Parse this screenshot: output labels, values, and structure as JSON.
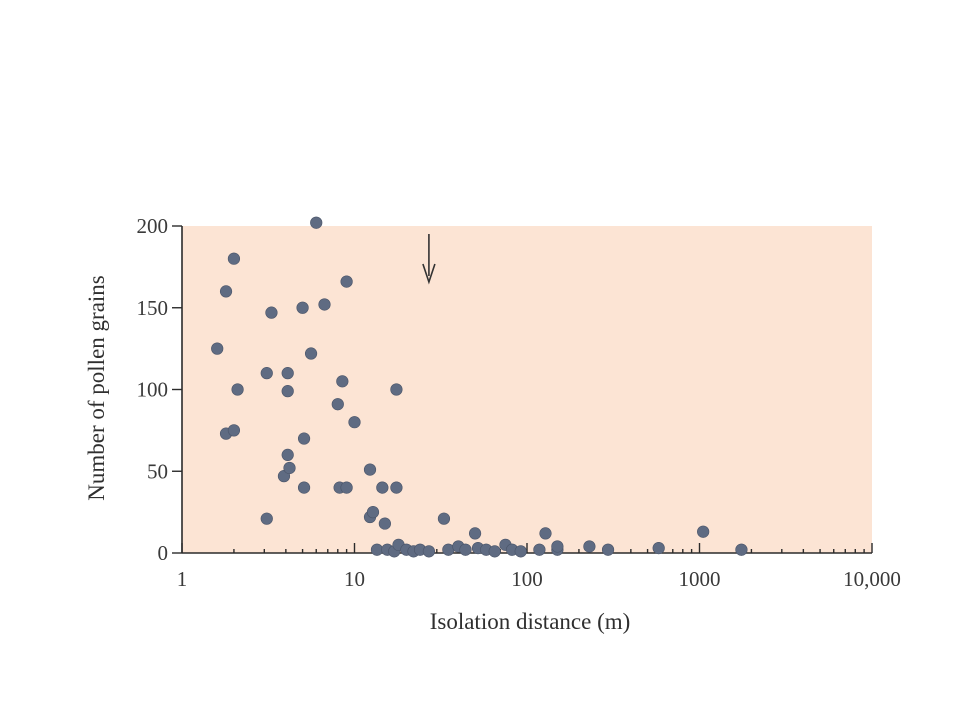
{
  "chart_data": {
    "type": "scatter",
    "xlabel": "Isolation distance (m)",
    "ylabel": "Number of pollen grains",
    "x_scale": "log",
    "xlim": [
      1,
      10000
    ],
    "ylim": [
      0,
      200
    ],
    "x_ticks": [
      1,
      10,
      100,
      1000,
      10000
    ],
    "x_tick_labels": [
      "1",
      "10",
      "100",
      "1000",
      "10,000"
    ],
    "y_ticks": [
      0,
      50,
      100,
      150,
      200
    ],
    "y_tick_labels": [
      "0",
      "50",
      "100",
      "150",
      "200"
    ],
    "grid": false,
    "annotation": {
      "type": "arrow",
      "x": 27,
      "direction": "down"
    },
    "points": [
      {
        "x": 1.6,
        "y": 125
      },
      {
        "x": 1.8,
        "y": 160
      },
      {
        "x": 1.8,
        "y": 73
      },
      {
        "x": 2.0,
        "y": 180
      },
      {
        "x": 2.0,
        "y": 75
      },
      {
        "x": 2.1,
        "y": 100
      },
      {
        "x": 3.1,
        "y": 110
      },
      {
        "x": 3.3,
        "y": 147
      },
      {
        "x": 3.1,
        "y": 21
      },
      {
        "x": 3.9,
        "y": 47
      },
      {
        "x": 4.1,
        "y": 110
      },
      {
        "x": 4.1,
        "y": 99
      },
      {
        "x": 4.1,
        "y": 60
      },
      {
        "x": 4.2,
        "y": 52
      },
      {
        "x": 5.0,
        "y": 150
      },
      {
        "x": 5.1,
        "y": 70
      },
      {
        "x": 5.1,
        "y": 40
      },
      {
        "x": 5.6,
        "y": 122
      },
      {
        "x": 6.0,
        "y": 202
      },
      {
        "x": 6.7,
        "y": 152
      },
      {
        "x": 8.0,
        "y": 91
      },
      {
        "x": 8.5,
        "y": 105
      },
      {
        "x": 8.2,
        "y": 40
      },
      {
        "x": 9.0,
        "y": 40
      },
      {
        "x": 9.0,
        "y": 166
      },
      {
        "x": 10.0,
        "y": 80
      },
      {
        "x": 12.3,
        "y": 51
      },
      {
        "x": 12.3,
        "y": 22
      },
      {
        "x": 12.8,
        "y": 25
      },
      {
        "x": 14.5,
        "y": 40
      },
      {
        "x": 15.0,
        "y": 18
      },
      {
        "x": 17.5,
        "y": 100
      },
      {
        "x": 17.5,
        "y": 40
      },
      {
        "x": 13.5,
        "y": 2
      },
      {
        "x": 15.5,
        "y": 2
      },
      {
        "x": 17.0,
        "y": 1
      },
      {
        "x": 18.0,
        "y": 5
      },
      {
        "x": 20.0,
        "y": 2
      },
      {
        "x": 22.0,
        "y": 1
      },
      {
        "x": 24.0,
        "y": 2
      },
      {
        "x": 27.0,
        "y": 1
      },
      {
        "x": 33.0,
        "y": 21
      },
      {
        "x": 35.0,
        "y": 2
      },
      {
        "x": 40.0,
        "y": 4
      },
      {
        "x": 44.0,
        "y": 2
      },
      {
        "x": 50.0,
        "y": 12
      },
      {
        "x": 52.0,
        "y": 3
      },
      {
        "x": 58.0,
        "y": 2
      },
      {
        "x": 65.0,
        "y": 1
      },
      {
        "x": 75.0,
        "y": 5
      },
      {
        "x": 82.0,
        "y": 2
      },
      {
        "x": 92.0,
        "y": 1
      },
      {
        "x": 118.0,
        "y": 2
      },
      {
        "x": 128.0,
        "y": 12
      },
      {
        "x": 150.0,
        "y": 2
      },
      {
        "x": 150.0,
        "y": 4
      },
      {
        "x": 230.0,
        "y": 4
      },
      {
        "x": 295.0,
        "y": 2
      },
      {
        "x": 580.0,
        "y": 3
      },
      {
        "x": 1050.0,
        "y": 13
      },
      {
        "x": 1750.0,
        "y": 2
      }
    ]
  },
  "colors": {
    "plot_background": "#fce4d4",
    "point_fill": "#5f6b82",
    "axis": "#2b2b2b"
  }
}
